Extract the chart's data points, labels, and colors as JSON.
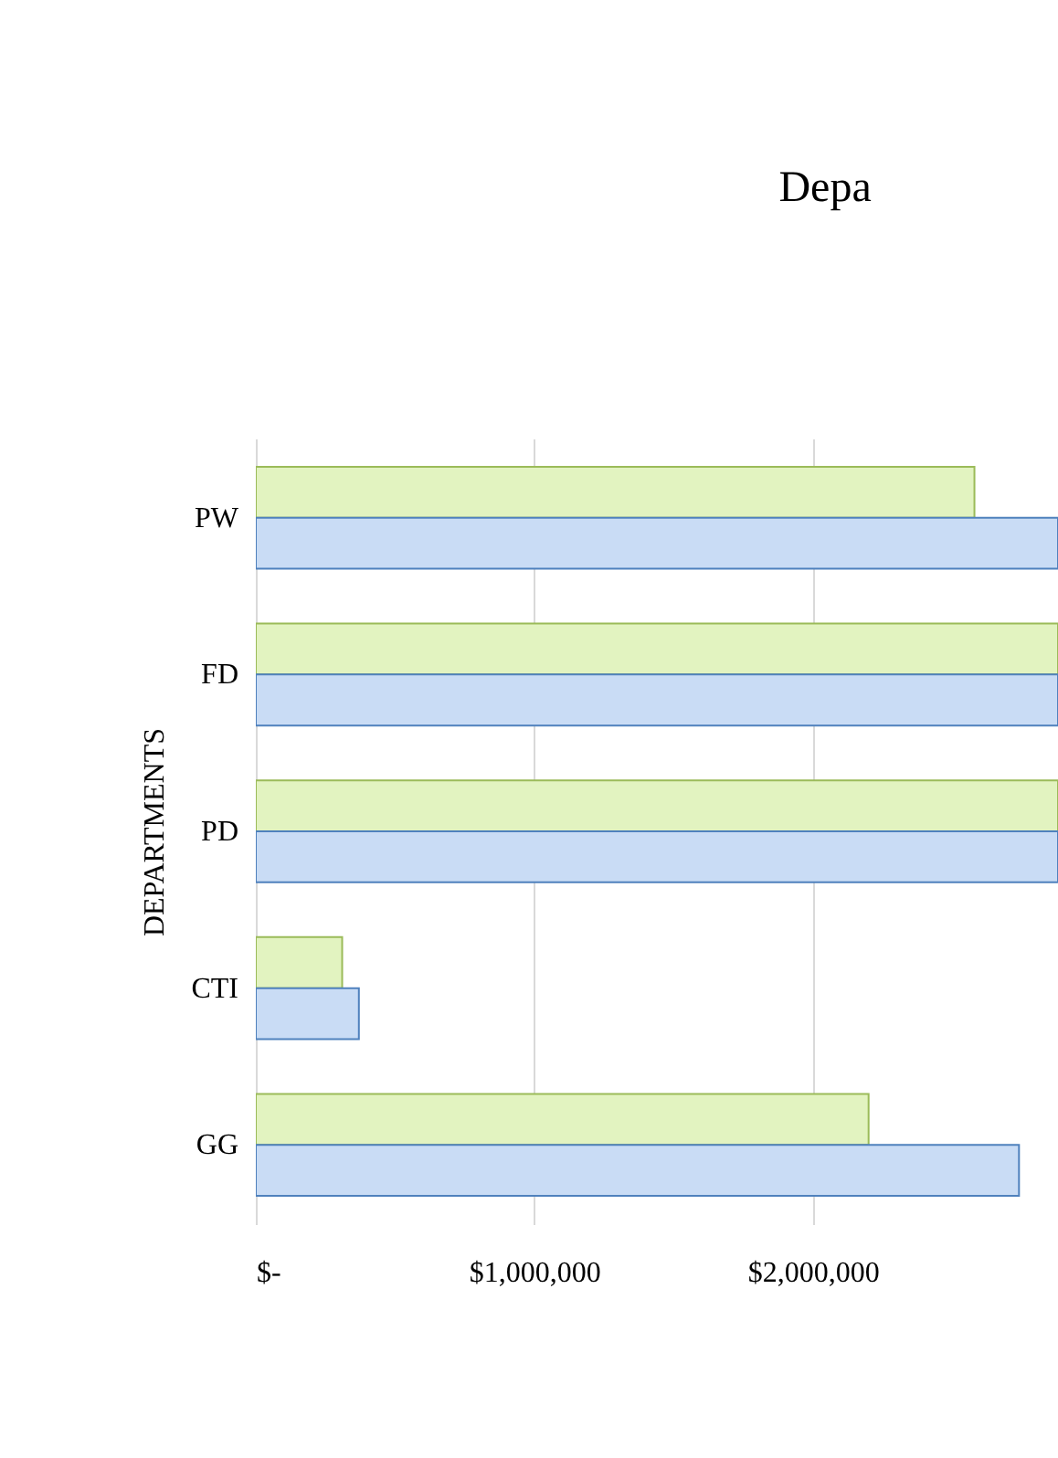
{
  "chart_data": {
    "type": "bar",
    "orientation": "horizontal",
    "title": "Depa",
    "ylabel": "DEPARTMENTS",
    "categories": [
      "PW",
      "FD",
      "PD",
      "CTI",
      "GG"
    ],
    "series": [
      {
        "color": "#e2f3c0",
        "values": [
          2580000,
          2880000,
          2880000,
          310000,
          2200000
        ]
      },
      {
        "color": "#c9dcf5",
        "values": [
          2880000,
          2880000,
          2880000,
          370000,
          2740000
        ]
      }
    ],
    "xlim": [
      0,
      2880000
    ],
    "xticks": [
      {
        "value": 0,
        "label": "$-"
      },
      {
        "value": 1000000,
        "label": "$1,000,000"
      },
      {
        "value": 2000000,
        "label": "$2,000,000"
      }
    ],
    "grid": "x"
  }
}
